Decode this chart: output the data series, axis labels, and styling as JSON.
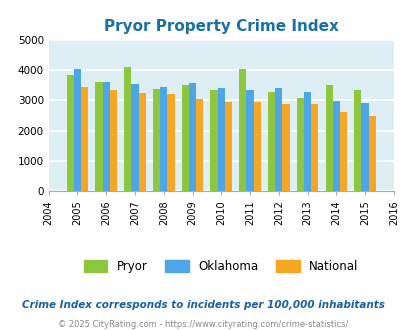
{
  "title": "Pryor Property Crime Index",
  "title_color": "#1a6fa8",
  "years": [
    2004,
    2005,
    2006,
    2007,
    2008,
    2009,
    2010,
    2011,
    2012,
    2013,
    2014,
    2015,
    2016
  ],
  "data_years": [
    2005,
    2006,
    2007,
    2008,
    2009,
    2010,
    2011,
    2012,
    2013,
    2014,
    2015
  ],
  "pryor": [
    3820,
    3600,
    4100,
    3380,
    3500,
    3330,
    4020,
    3260,
    3060,
    3500,
    3350
  ],
  "oklahoma": [
    4040,
    3590,
    3540,
    3430,
    3560,
    3420,
    3350,
    3390,
    3270,
    2990,
    2900
  ],
  "national": [
    3440,
    3340,
    3230,
    3200,
    3040,
    2960,
    2930,
    2870,
    2870,
    2600,
    2490
  ],
  "pryor_color": "#8dc63f",
  "oklahoma_color": "#4da6e8",
  "national_color": "#f5a623",
  "bg_color": "#ddeef5",
  "ylim": [
    0,
    5000
  ],
  "yticks": [
    0,
    1000,
    2000,
    3000,
    4000,
    5000
  ],
  "bar_width": 0.25,
  "footnote1": "Crime Index corresponds to incidents per 100,000 inhabitants",
  "footnote2": "© 2025 CityRating.com - https://www.cityrating.com/crime-statistics/",
  "footnote1_color": "#1a5fa0",
  "footnote2_color": "#888888"
}
